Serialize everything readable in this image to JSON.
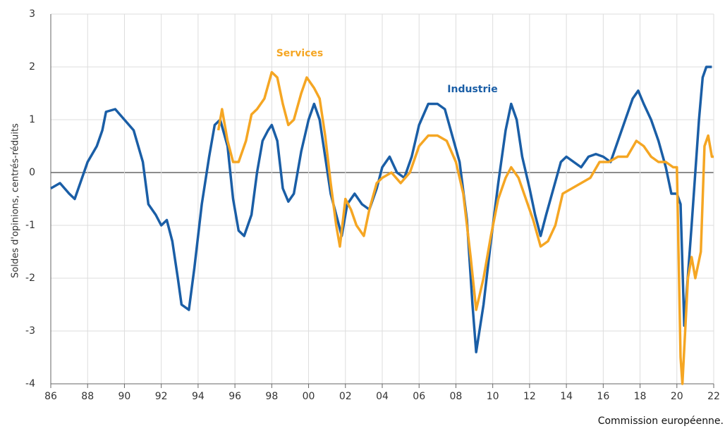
{
  "chart_data": {
    "type": "line",
    "y_label": "Soldes d'opinions, centrés-réduits",
    "source": "Commission européenne.",
    "xlim": [
      1986,
      2022
    ],
    "ylim": [
      -4,
      3
    ],
    "xticks": [
      {
        "value": 1986,
        "label": "86"
      },
      {
        "value": 1988,
        "label": "88"
      },
      {
        "value": 1990,
        "label": "90"
      },
      {
        "value": 1992,
        "label": "92"
      },
      {
        "value": 1994,
        "label": "94"
      },
      {
        "value": 1996,
        "label": "96"
      },
      {
        "value": 1998,
        "label": "98"
      },
      {
        "value": 2000,
        "label": "00"
      },
      {
        "value": 2002,
        "label": "02"
      },
      {
        "value": 2004,
        "label": "04"
      },
      {
        "value": 2006,
        "label": "06"
      },
      {
        "value": 2008,
        "label": "08"
      },
      {
        "value": 2010,
        "label": "10"
      },
      {
        "value": 2012,
        "label": "12"
      },
      {
        "value": 2014,
        "label": "14"
      },
      {
        "value": 2016,
        "label": "16"
      },
      {
        "value": 2018,
        "label": "18"
      },
      {
        "value": 2020,
        "label": "20"
      },
      {
        "value": 2022,
        "label": "22"
      }
    ],
    "yticks": [
      -4,
      -3,
      -2,
      -1,
      0,
      1,
      2,
      3
    ],
    "grid": true,
    "series": [
      {
        "name": "Industrie",
        "color": "#1a5ea6",
        "x": [
          1986.0,
          1986.5,
          1987.0,
          1987.3,
          1987.7,
          1988.0,
          1988.5,
          1988.8,
          1989.0,
          1989.5,
          1990.0,
          1990.5,
          1991.0,
          1991.3,
          1991.7,
          1992.0,
          1992.3,
          1992.6,
          1992.9,
          1993.1,
          1993.5,
          1993.8,
          1994.2,
          1994.6,
          1994.9,
          1995.2,
          1995.6,
          1995.9,
          1996.2,
          1996.5,
          1996.9,
          1997.2,
          1997.5,
          1997.8,
          1998.0,
          1998.3,
          1998.6,
          1998.9,
          1999.2,
          1999.6,
          2000.0,
          2000.3,
          2000.6,
          2000.9,
          2001.2,
          2001.5,
          2001.8,
          2002.1,
          2002.5,
          2002.9,
          2003.3,
          2003.7,
          2004.0,
          2004.4,
          2004.8,
          2005.2,
          2005.6,
          2006.0,
          2006.5,
          2007.0,
          2007.4,
          2007.8,
          2008.2,
          2008.6,
          2008.9,
          2009.1,
          2009.5,
          2009.9,
          2010.3,
          2010.7,
          2011.0,
          2011.3,
          2011.6,
          2012.0,
          2012.3,
          2012.6,
          2012.9,
          2013.3,
          2013.7,
          2014.0,
          2014.4,
          2014.8,
          2015.2,
          2015.6,
          2016.0,
          2016.4,
          2016.8,
          2017.2,
          2017.6,
          2017.9,
          2018.2,
          2018.6,
          2019.0,
          2019.4,
          2019.7,
          2020.0,
          2020.2,
          2020.4,
          2020.8,
          2021.0,
          2021.2,
          2021.4,
          2021.6,
          2021.9
        ],
        "values": [
          -0.3,
          -0.2,
          -0.4,
          -0.5,
          -0.1,
          0.2,
          0.5,
          0.8,
          1.15,
          1.2,
          1.0,
          0.8,
          0.2,
          -0.6,
          -0.8,
          -1.0,
          -0.9,
          -1.3,
          -2.0,
          -2.5,
          -2.6,
          -1.8,
          -0.6,
          0.3,
          0.9,
          1.0,
          0.5,
          -0.5,
          -1.1,
          -1.2,
          -0.8,
          0.0,
          0.6,
          0.8,
          0.9,
          0.6,
          -0.3,
          -0.55,
          -0.4,
          0.4,
          1.0,
          1.3,
          1.0,
          0.3,
          -0.4,
          -0.8,
          -1.2,
          -0.6,
          -0.4,
          -0.6,
          -0.7,
          -0.3,
          0.1,
          0.3,
          0.0,
          -0.1,
          0.3,
          0.9,
          1.3,
          1.3,
          1.2,
          0.7,
          0.2,
          -0.9,
          -2.5,
          -3.4,
          -2.5,
          -1.3,
          -0.2,
          0.8,
          1.3,
          1.0,
          0.3,
          -0.3,
          -0.8,
          -1.2,
          -0.8,
          -0.3,
          0.2,
          0.3,
          0.2,
          0.1,
          0.3,
          0.35,
          0.3,
          0.2,
          0.6,
          1.0,
          1.4,
          1.55,
          1.3,
          1.0,
          0.6,
          0.1,
          -0.4,
          -0.4,
          -0.6,
          -2.9,
          -1.0,
          0.0,
          1.0,
          1.8,
          2.0,
          2.0
        ]
      },
      {
        "name": "Services",
        "color": "#f5a623",
        "x": [
          1995.1,
          1995.3,
          1995.6,
          1995.9,
          1996.2,
          1996.6,
          1996.9,
          1997.2,
          1997.6,
          1998.0,
          1998.3,
          1998.6,
          1998.9,
          1999.2,
          1999.6,
          1999.9,
          2000.3,
          2000.6,
          2000.9,
          2001.2,
          2001.5,
          2001.7,
          2002.0,
          2002.3,
          2002.6,
          2003.0,
          2003.3,
          2003.7,
          2004.0,
          2004.5,
          2005.0,
          2005.5,
          2006.0,
          2006.5,
          2007.0,
          2007.5,
          2008.0,
          2008.4,
          2008.8,
          2009.1,
          2009.5,
          2009.9,
          2010.3,
          2010.7,
          2011.0,
          2011.4,
          2011.8,
          2012.2,
          2012.6,
          2013.0,
          2013.4,
          2013.8,
          2014.3,
          2014.8,
          2015.3,
          2015.8,
          2016.3,
          2016.8,
          2017.3,
          2017.8,
          2018.2,
          2018.6,
          2019.0,
          2019.4,
          2019.8,
          2020.0,
          2020.2,
          2020.3,
          2020.6,
          2020.8,
          2021.0,
          2021.3,
          2021.5,
          2021.7,
          2021.9,
          2022.0
        ],
        "values": [
          0.8,
          1.2,
          0.6,
          0.2,
          0.2,
          0.6,
          1.1,
          1.2,
          1.4,
          1.9,
          1.8,
          1.3,
          0.9,
          1.0,
          1.5,
          1.8,
          1.6,
          1.4,
          0.7,
          -0.2,
          -1.0,
          -1.4,
          -0.5,
          -0.7,
          -1.0,
          -1.2,
          -0.7,
          -0.2,
          -0.1,
          0.0,
          -0.2,
          0.0,
          0.5,
          0.7,
          0.7,
          0.6,
          0.2,
          -0.4,
          -1.6,
          -2.6,
          -2.0,
          -1.2,
          -0.5,
          -0.1,
          0.1,
          -0.1,
          -0.5,
          -0.9,
          -1.4,
          -1.3,
          -1.0,
          -0.4,
          -0.3,
          -0.2,
          -0.1,
          0.2,
          0.2,
          0.3,
          0.3,
          0.6,
          0.5,
          0.3,
          0.2,
          0.2,
          0.1,
          0.1,
          -3.5,
          -4.0,
          -2.0,
          -1.6,
          -2.0,
          -1.5,
          0.5,
          0.7,
          0.3,
          0.3
        ]
      }
    ]
  }
}
